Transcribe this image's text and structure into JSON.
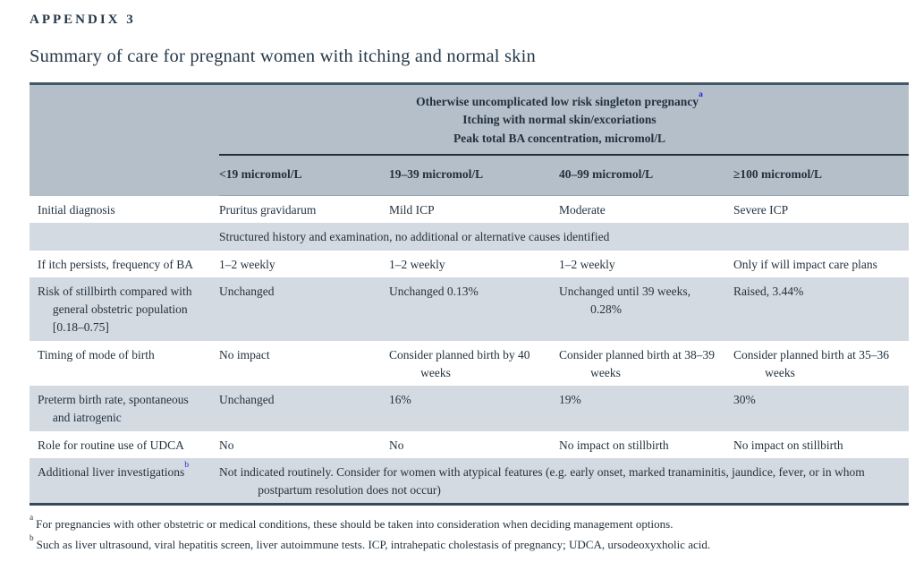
{
  "page": {
    "appendix_label": "APPENDIX 3",
    "title": "Summary of care for pregnant women with itching and normal skin"
  },
  "table": {
    "spanning_header": {
      "line1": "Otherwise uncomplicated low risk singleton pregnancy",
      "line1_sup": "a",
      "line2": "Itching with normal skin/excoriations",
      "line3": "Peak total BA concentration, micromol/L"
    },
    "column_headers": {
      "col1": "<19 micromol/L",
      "col2": "19–39 micromol/L",
      "col3": "40–99 micromol/L",
      "col4": "≥100 micromol/L"
    },
    "rows": [
      {
        "label": "Initial diagnosis",
        "cells": [
          "Pruritus gravidarum",
          "Mild ICP",
          "Moderate",
          "Severe ICP"
        ]
      },
      {
        "label": "",
        "span_text": "Structured history and examination, no additional or alternative causes identified"
      },
      {
        "label": "If itch persists, frequency of BA",
        "cells": [
          "1–2 weekly",
          "1–2 weekly",
          "1–2 weekly",
          "Only if will impact care plans"
        ]
      },
      {
        "label": "Risk of stillbirth compared with general obstetric population [0.18–0.75]",
        "cells": [
          "Unchanged",
          "Unchanged 0.13%",
          "Unchanged until 39 weeks, 0.28%",
          "Raised, 3.44%"
        ]
      },
      {
        "label": "Timing of mode of birth",
        "cells": [
          "No impact",
          "Consider planned birth by 40 weeks",
          "Consider planned birth at 38–39 weeks",
          "Consider planned birth at 35–36 weeks"
        ]
      },
      {
        "label": "Preterm birth rate, spontaneous and iatrogenic",
        "cells": [
          "Unchanged",
          "16%",
          "19%",
          "30%"
        ]
      },
      {
        "label": "Role for routine use of UDCA",
        "cells": [
          "No",
          "No",
          "No impact on stillbirth",
          "No impact on stillbirth"
        ]
      },
      {
        "label": "Additional liver investigations",
        "label_sup": "b",
        "span_text": "Not indicated routinely. Consider for women with atypical features (e.g. early onset, marked tranaminitis, jaundice, fever, or in whom postpartum resolution does not occur)"
      }
    ]
  },
  "footnotes": [
    {
      "marker": "a",
      "text": "For pregnancies with other obstetric or medical conditions, these should be taken into consideration when deciding management options."
    },
    {
      "marker": "b",
      "text": "Such as liver ultrasound, viral hepatitis screen, liver autoimmune tests. ICP, intrahepatic cholestasis of pregnancy; UDCA, ursodeoxyxholic acid."
    }
  ],
  "colors": {
    "header_band": "#b5bfca",
    "shaded_row": "#d4dae1",
    "table_border": "#36495c",
    "text": "#24323f",
    "link_blue": "#2525e6"
  }
}
